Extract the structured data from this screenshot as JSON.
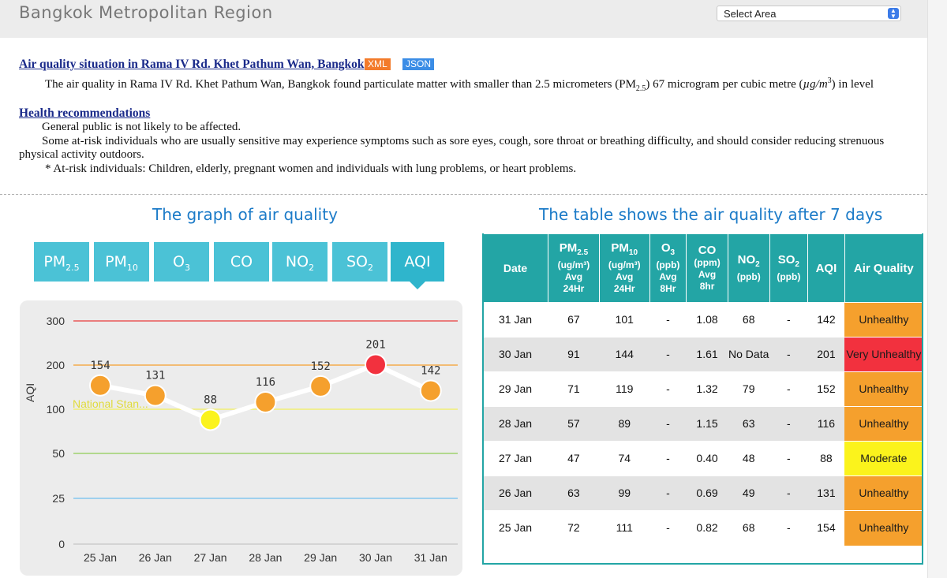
{
  "header": {
    "title": "Bangkok Metropolitan Region",
    "select_label": "Select Area",
    "select_arrow": "◆"
  },
  "situation": {
    "title": "Air quality situation in Rama IV Rd. Khet Pathum Wan, Bangkok",
    "xml_label": "XML",
    "json_label": "JSON",
    "desc_pre": "The air quality in Rama IV Rd. Khet Pathum Wan, Bangkok found particulate matter with smaller than 2.5 micrometers (PM",
    "desc_sub": "2.5",
    "desc_mid": ") 67 microgram per cubic metre (",
    "desc_unit": "µg/m",
    "desc_sup": "3",
    "desc_post": ") in level"
  },
  "health": {
    "title": "Health recommendations",
    "line1": "General public is not likely to be affected.",
    "line2": "Some at-risk individuals who are usually sensitive may experience symptoms such as sore eyes, cough, sore throat or breathing difficulty, and should consider reducing strenuous",
    "line3": "physical activity outdoors.",
    "line4": "* At-risk individuals: Children, elderly, pregnant women and individuals with lung problems, or heart problems."
  },
  "graph": {
    "title": "The graph of air quality",
    "tabs": [
      {
        "main": "PM",
        "sub": "2.5"
      },
      {
        "main": "PM",
        "sub": "10"
      },
      {
        "main": "O",
        "sub": "3"
      },
      {
        "main": "CO",
        "sub": ""
      },
      {
        "main": "NO",
        "sub": "2"
      },
      {
        "main": "SO",
        "sub": "2"
      },
      {
        "main": "AQI",
        "sub": ""
      }
    ],
    "active_tab": "AQI"
  },
  "chart_data": {
    "type": "line",
    "ylabel": "AQI",
    "categories": [
      "25 Jan",
      "26 Jan",
      "27 Jan",
      "28 Jan",
      "29 Jan",
      "30 Jan",
      "31 Jan"
    ],
    "values": [
      154,
      131,
      88,
      116,
      152,
      201,
      142
    ],
    "point_colors": [
      "#f5a02d",
      "#f5a02d",
      "#fbf31c",
      "#f5a02d",
      "#f5a02d",
      "#f2313e",
      "#f5a02d"
    ],
    "yticks": [
      "0",
      "25",
      "50",
      "100",
      "200",
      "300"
    ],
    "reference_lines": [
      {
        "value": "300",
        "color": "#e83b3b"
      },
      {
        "value": "200",
        "color": "#f5a02d"
      },
      {
        "value": "100",
        "color": "#f1ef5b",
        "label": "National Stan..."
      },
      {
        "value": "50",
        "color": "#8ecb54"
      },
      {
        "value": "25",
        "color": "#6fc0ee"
      }
    ]
  },
  "table": {
    "title": "The table shows the air quality after 7 days",
    "headers": {
      "date": "Date",
      "pm25_main": "PM",
      "pm25_sub": "2.5",
      "pm25_unit": "(ug/m³)",
      "pm25_avg": "Avg",
      "pm25_period": "24Hr",
      "pm10_main": "PM",
      "pm10_sub": "10",
      "pm10_unit": "(ug/m³)",
      "pm10_avg": "Avg",
      "pm10_period": "24Hr",
      "o3_main": "O",
      "o3_sub": "3",
      "o3_unit": "(ppb)",
      "o3_avg": "Avg",
      "o3_period": "8Hr",
      "co_main": "CO",
      "co_unit": "(ppm)",
      "co_avg": "Avg",
      "co_period": "8hr",
      "no2_main": "NO",
      "no2_sub": "2",
      "no2_unit": "(ppb)",
      "so2_main": "SO",
      "so2_sub": "2",
      "so2_unit": "(ppb)",
      "aqi": "AQI",
      "quality": "Air Quality"
    },
    "rows": [
      {
        "date": "31 Jan",
        "pm25": "67",
        "pm10": "101",
        "o3": "-",
        "co": "1.08",
        "no2": "68",
        "so2": "-",
        "aqi": "142",
        "quality": "Unhealthy",
        "level": "unhealthy"
      },
      {
        "date": "30 Jan",
        "pm25": "91",
        "pm10": "144",
        "o3": "-",
        "co": "1.61",
        "no2": "No Data",
        "so2": "-",
        "aqi": "201",
        "quality": "Very Unhealthy",
        "level": "very-unhealthy"
      },
      {
        "date": "29 Jan",
        "pm25": "71",
        "pm10": "119",
        "o3": "-",
        "co": "1.32",
        "no2": "79",
        "so2": "-",
        "aqi": "152",
        "quality": "Unhealthy",
        "level": "unhealthy"
      },
      {
        "date": "28 Jan",
        "pm25": "57",
        "pm10": "89",
        "o3": "-",
        "co": "1.15",
        "no2": "63",
        "so2": "-",
        "aqi": "116",
        "quality": "Unhealthy",
        "level": "unhealthy"
      },
      {
        "date": "27 Jan",
        "pm25": "47",
        "pm10": "74",
        "o3": "-",
        "co": "0.40",
        "no2": "48",
        "so2": "-",
        "aqi": "88",
        "quality": "Moderate",
        "level": "moderate"
      },
      {
        "date": "26 Jan",
        "pm25": "63",
        "pm10": "99",
        "o3": "-",
        "co": "0.69",
        "no2": "49",
        "so2": "-",
        "aqi": "131",
        "quality": "Unhealthy",
        "level": "unhealthy"
      },
      {
        "date": "25 Jan",
        "pm25": "72",
        "pm10": "111",
        "o3": "-",
        "co": "0.82",
        "no2": "68",
        "so2": "-",
        "aqi": "154",
        "quality": "Unhealthy",
        "level": "unhealthy"
      }
    ]
  }
}
